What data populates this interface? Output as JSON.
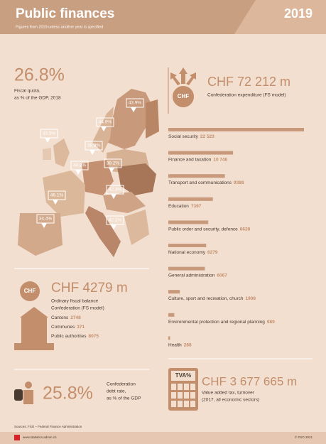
{
  "header": {
    "title": "Public finances",
    "subtitle": "Figures from 2019 unless another year is specified",
    "year": "2019"
  },
  "fiscal_quota": {
    "value": "26.8%",
    "label_lines": [
      "Fiscal quota,",
      "as % of the GDP, 2018"
    ],
    "map_labels": [
      "43.9%",
      "33.5%",
      "44.9%",
      "38.8%",
      "44.8%",
      "38.2%",
      "46.1%",
      "42.3%",
      "34.4%",
      "42.1%"
    ]
  },
  "expenditure": {
    "icon": "CHF",
    "amount": "CHF 72 212 m",
    "label": "Confederation expenditure (FS model)",
    "categories": [
      "Social security",
      "Finance and taxation",
      "Transport and communications",
      "Education",
      "Public order and security, defence",
      "National economy",
      "General administration",
      "Culture, sport and recreation, church",
      "Environmental protection and regional planning",
      "Health"
    ],
    "values": [
      22523,
      10746,
      9388,
      7397,
      6628,
      6279,
      6067,
      1908,
      989,
      288
    ],
    "value_labels": [
      "22 523",
      "10 746",
      "9388",
      "7397",
      "6628",
      "6279",
      "6067",
      "1908",
      "989",
      "288"
    ]
  },
  "balance": {
    "icon": "CHF",
    "amount": "CHF 4279 m",
    "label_lines": [
      "Ordinary fiscal balance",
      "Confederation (FS model)"
    ],
    "items": [
      {
        "name": "Cantons",
        "value": "2748"
      },
      {
        "name": "Communes",
        "value": "371"
      },
      {
        "name": "Public authorities",
        "value": "8075"
      }
    ]
  },
  "debt": {
    "value": "25.8%",
    "label_lines": [
      "Confederation",
      "debt rate,",
      "as % of the GDP"
    ]
  },
  "vat": {
    "icon": "TVA%",
    "amount": "CHF 3 677 665 m",
    "label_lines": [
      "Value added tax, turnover",
      "(2017, all economic sectors)"
    ]
  },
  "footer": {
    "sources": "Sources: FSO – Federal Finance Administration",
    "url": "www.statistics.admin.ch",
    "copyright": "© FSO 2021"
  }
}
